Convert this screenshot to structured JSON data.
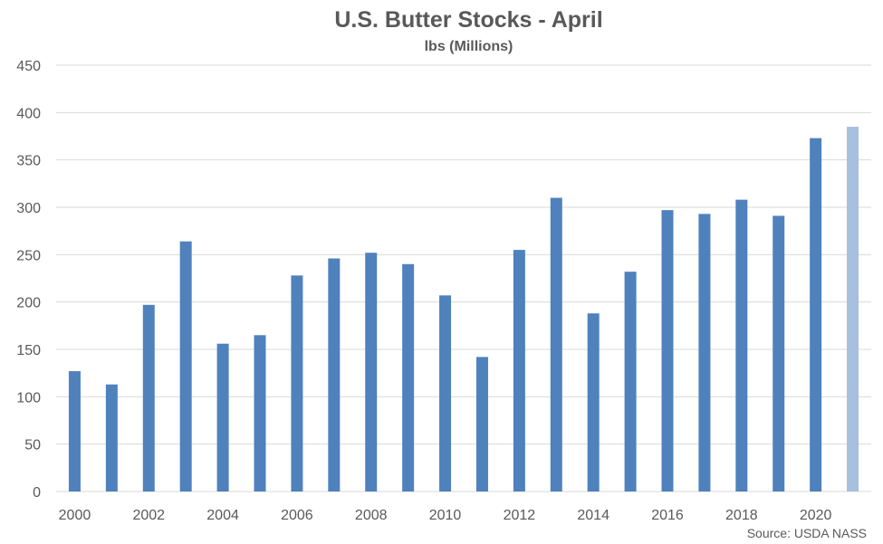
{
  "chart_data": {
    "type": "bar",
    "title": "U.S. Butter Stocks - April",
    "subtitle": "lbs (Millions)",
    "source": "Source: USDA NASS",
    "categories": [
      "2000",
      "2001",
      "2002",
      "2003",
      "2004",
      "2005",
      "2006",
      "2007",
      "2008",
      "2009",
      "2010",
      "2011",
      "2012",
      "2013",
      "2014",
      "2015",
      "2016",
      "2017",
      "2018",
      "2019",
      "2020",
      "2021"
    ],
    "x_tick_labels": [
      "2000",
      "2002",
      "2004",
      "2006",
      "2008",
      "2010",
      "2012",
      "2014",
      "2016",
      "2018",
      "2020"
    ],
    "values": [
      127,
      113,
      197,
      264,
      156,
      165,
      228,
      246,
      252,
      240,
      207,
      142,
      255,
      310,
      188,
      232,
      297,
      293,
      308,
      291,
      373,
      385
    ],
    "highlight_index": 21,
    "ylim": [
      0,
      450
    ],
    "y_ticks": [
      0,
      50,
      100,
      150,
      200,
      250,
      300,
      350,
      400,
      450
    ],
    "grid": true,
    "legend": "none",
    "colors": {
      "bar": "#4f81bd",
      "bar_highlight": "#a7c0de",
      "grid": "#d9d9d9",
      "text": "#595959"
    }
  }
}
